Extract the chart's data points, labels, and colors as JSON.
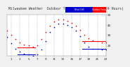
{
  "title": "Milwaukee Weather  Outdoor Temp.",
  "subtitle": "vs Wind Chill",
  "subtitle2": "(24 Hours)",
  "bg_color": "#f0f0f0",
  "plot_bg": "#ffffff",
  "grid_color": "#aaaaaa",
  "legend_temp_color": "#ff0000",
  "legend_wind_color": "#0000cc",
  "legend_temp_label": "Outdoor Temp",
  "legend_wind_label": "Wind Chill",
  "x_hours": [
    0,
    1,
    2,
    3,
    4,
    5,
    6,
    7,
    8,
    9,
    10,
    11,
    12,
    13,
    14,
    15,
    16,
    17,
    18,
    19,
    20,
    21,
    22,
    23
  ],
  "temp_values": [
    34,
    30,
    26,
    23,
    21,
    20,
    19,
    20,
    26,
    33,
    39,
    43,
    45,
    45,
    44,
    42,
    39,
    35,
    30,
    27,
    25,
    24,
    23,
    23
  ],
  "wind_chill": [
    28,
    22,
    17,
    14,
    12,
    11,
    10,
    11,
    16,
    24,
    33,
    38,
    41,
    41,
    40,
    38,
    34,
    29,
    23,
    19,
    17,
    17,
    16,
    16
  ],
  "ylim_min": 10,
  "ylim_max": 50,
  "ytick_vals": [
    20,
    30,
    40,
    50
  ],
  "xtick_vals": [
    1,
    3,
    5,
    7,
    9,
    11,
    13,
    15,
    17,
    19,
    21,
    23
  ],
  "dot_size": 1.5,
  "title_fontsize": 3.5,
  "tick_fontsize": 3.0
}
